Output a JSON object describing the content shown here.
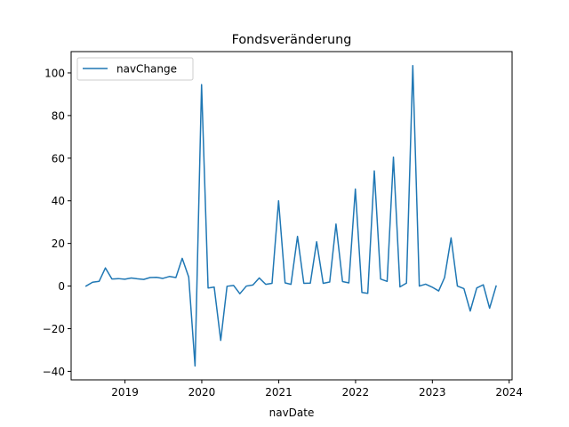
{
  "chart_data": {
    "type": "line",
    "title": "Fondsveränderung",
    "xlabel": "navDate",
    "ylabel": "",
    "xlim": [
      "2018-04-20",
      "2024-01-15"
    ],
    "ylim": [
      -44,
      110
    ],
    "x_ticks": [
      "2019",
      "2020",
      "2021",
      "2022",
      "2023",
      "2024"
    ],
    "y_ticks": [
      -40,
      -20,
      0,
      20,
      40,
      60,
      80,
      100
    ],
    "grid": false,
    "legend_position": "top-left",
    "series": [
      {
        "name": "navChange",
        "color": "#1f77b4",
        "x": [
          "2018-06-30",
          "2018-07-31",
          "2018-08-31",
          "2018-09-30",
          "2018-10-31",
          "2018-11-30",
          "2018-12-31",
          "2019-01-31",
          "2019-02-28",
          "2019-03-31",
          "2019-04-30",
          "2019-05-31",
          "2019-06-30",
          "2019-07-31",
          "2019-08-31",
          "2019-09-30",
          "2019-10-31",
          "2019-11-30",
          "2019-12-31",
          "2020-01-31",
          "2020-02-29",
          "2020-03-31",
          "2020-04-30",
          "2020-05-31",
          "2020-06-30",
          "2020-07-31",
          "2020-08-31",
          "2020-09-30",
          "2020-10-31",
          "2020-11-30",
          "2020-12-31",
          "2021-01-31",
          "2021-02-28",
          "2021-03-31",
          "2021-04-30",
          "2021-05-31",
          "2021-06-30",
          "2021-07-31",
          "2021-08-31",
          "2021-09-30",
          "2021-10-31",
          "2021-11-30",
          "2021-12-31",
          "2022-01-31",
          "2022-02-28",
          "2022-03-31",
          "2022-04-30",
          "2022-05-31",
          "2022-06-30",
          "2022-07-31",
          "2022-08-31",
          "2022-09-30",
          "2022-10-31",
          "2022-11-30",
          "2022-12-31",
          "2023-01-31",
          "2023-02-28",
          "2023-03-31",
          "2023-04-30",
          "2023-05-31",
          "2023-06-30",
          "2023-07-31",
          "2023-08-31",
          "2023-09-30",
          "2023-10-31"
        ],
        "y": [
          0,
          1.8,
          2.2,
          8.5,
          3.3,
          3.5,
          3.2,
          3.8,
          3.4,
          3.1,
          4,
          4.1,
          3.6,
          4.5,
          4,
          13,
          4.2,
          -37.5,
          94.5,
          -0.9,
          -0.5,
          -25.5,
          -0.1,
          0.3,
          -3.6,
          0,
          0.5,
          3.8,
          0.8,
          1.3,
          40,
          1.5,
          0.8,
          23.3,
          1.3,
          1.4,
          20.8,
          1.3,
          1.9,
          29.1,
          2.1,
          1.5,
          45.5,
          -3,
          -3.4,
          54,
          3.3,
          2.2,
          60.5,
          -0.4,
          1.4,
          103.4,
          0,
          0.9,
          -0.5,
          -2.3,
          4,
          22.6,
          0,
          -1.2,
          -11.7,
          -0.9,
          0.6,
          -10.4,
          0
        ]
      }
    ]
  }
}
